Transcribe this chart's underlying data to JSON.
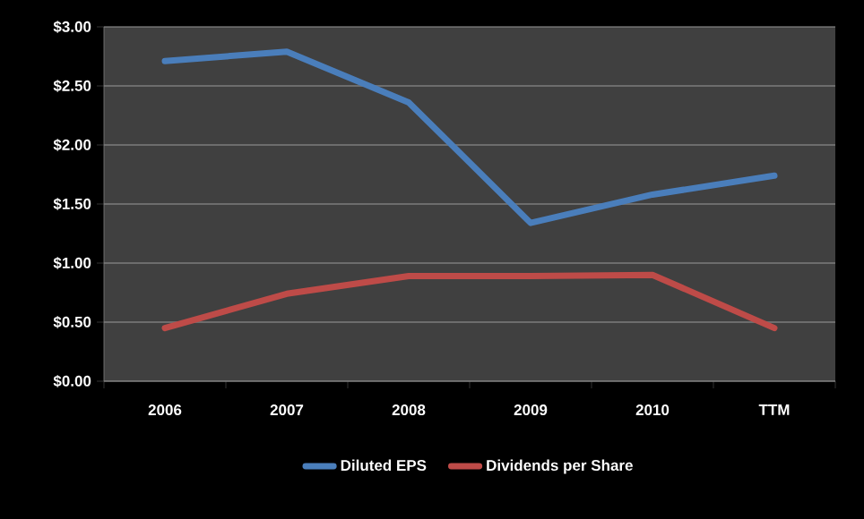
{
  "chart_data": {
    "type": "line",
    "categories": [
      "2006",
      "2007",
      "2008",
      "2009",
      "2010",
      "TTM"
    ],
    "series": [
      {
        "name": "Diluted EPS",
        "color": "#4a7ebb",
        "values": [
          2.71,
          2.79,
          2.36,
          1.34,
          1.58,
          1.74
        ]
      },
      {
        "name": "Dividends per Share",
        "color": "#be4b48",
        "values": [
          0.45,
          0.74,
          0.89,
          0.89,
          0.9,
          0.45
        ]
      }
    ],
    "ylim": [
      0,
      3
    ],
    "yticks": [
      {
        "value": 0,
        "label": "$0.00"
      },
      {
        "value": 0.5,
        "label": "$0.50"
      },
      {
        "value": 1,
        "label": "$1.00"
      },
      {
        "value": 1.5,
        "label": "$1.50"
      },
      {
        "value": 2,
        "label": "$2.00"
      },
      {
        "value": 2.5,
        "label": "$2.50"
      },
      {
        "value": 3,
        "label": "$3.00"
      }
    ],
    "grid": "y",
    "legend": "bottom",
    "marker": "none",
    "line_style": "solid"
  }
}
